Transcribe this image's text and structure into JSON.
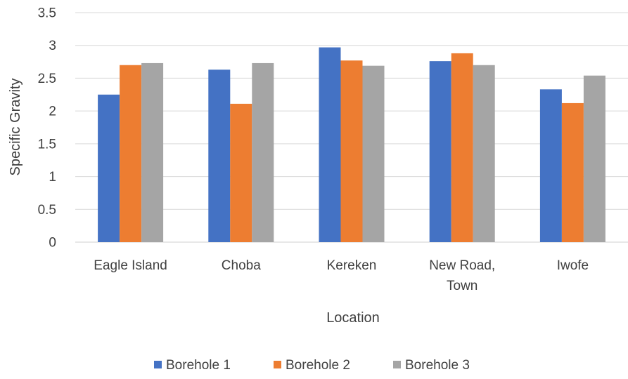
{
  "chart_data": {
    "type": "bar",
    "title": "",
    "xlabel": "Location",
    "ylabel": "Specific Gravity",
    "categories": [
      [
        "Eagle Island"
      ],
      [
        "Choba"
      ],
      [
        "Kereken"
      ],
      [
        "New Road,",
        "Town"
      ],
      [
        "Iwofe"
      ]
    ],
    "series": [
      {
        "name": "Borehole 1",
        "color": "#4472c4",
        "values": [
          2.25,
          2.63,
          2.97,
          2.76,
          2.33
        ]
      },
      {
        "name": "Borehole 2",
        "color": "#ed7d31",
        "values": [
          2.7,
          2.11,
          2.77,
          2.88,
          2.12
        ]
      },
      {
        "name": "Borehole 3",
        "color": "#a5a5a5",
        "values": [
          2.73,
          2.73,
          2.69,
          2.7,
          2.54
        ]
      }
    ],
    "ylim": [
      0,
      3.5
    ],
    "yticks": [
      "0",
      "0.5",
      "1",
      "1.5",
      "2",
      "2.5",
      "3",
      "3.5"
    ],
    "grid": true,
    "legend_position": "bottom"
  }
}
